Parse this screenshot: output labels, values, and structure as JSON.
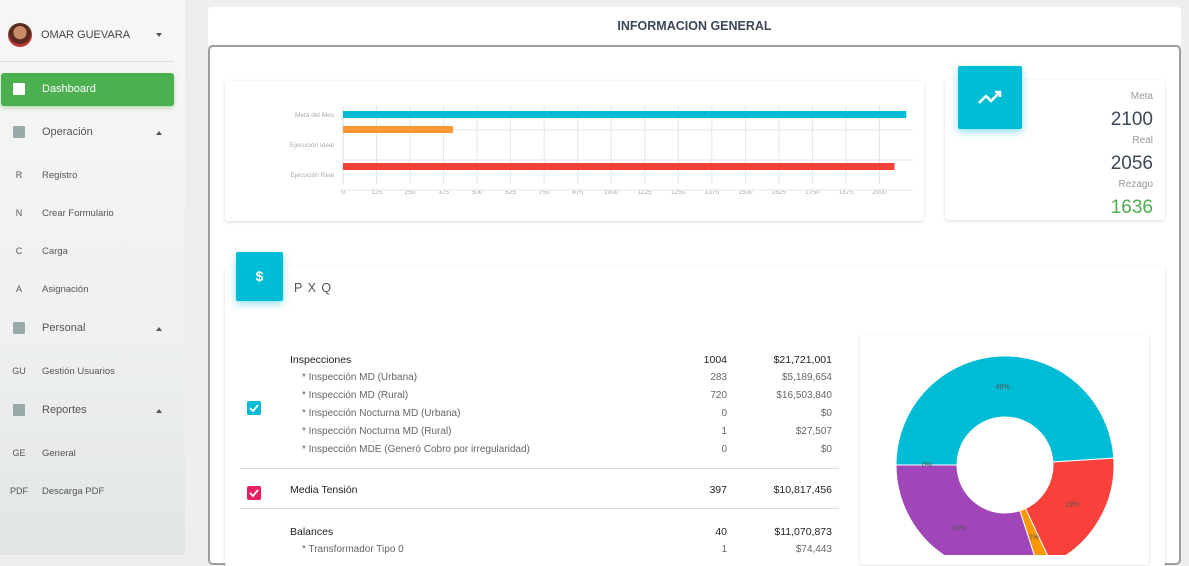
{
  "sidebar": {
    "user": "OMAR GUEVARA",
    "menu": [
      {
        "label": "Dashboard",
        "active": true
      },
      {
        "label": "Operación",
        "items": [
          {
            "abbr": "R",
            "label": "Registro"
          },
          {
            "abbr": "N",
            "label": "Crear Formulario"
          },
          {
            "abbr": "C",
            "label": "Carga"
          },
          {
            "abbr": "A",
            "label": "Asignación"
          }
        ]
      },
      {
        "label": "Personal",
        "items": [
          {
            "abbr": "GU",
            "label": "Gestión Usuarios"
          }
        ]
      },
      {
        "label": "Reportes",
        "items": [
          {
            "abbr": "GE",
            "label": "General"
          },
          {
            "abbr": "PDF",
            "label": "Descarga PDF"
          }
        ]
      }
    ]
  },
  "header": {
    "title": "INFORMACION GENERAL"
  },
  "chart_data": [
    {
      "type": "bar",
      "orientation": "horizontal",
      "categories": [
        "Meta del Mes",
        "Ejecución Ideal",
        "Ejecución Real"
      ],
      "values": [
        2100,
        410,
        2056
      ],
      "colors": [
        "#00bcd4",
        "#ff9933",
        "#f44336"
      ],
      "xlim": [
        0,
        2125
      ],
      "xticks": [
        0,
        125,
        250,
        375,
        500,
        625,
        750,
        875,
        1000,
        1125,
        1250,
        1375,
        1500,
        1625,
        1750,
        1875,
        2000
      ],
      "grid": true
    },
    {
      "type": "pie",
      "donut": true,
      "values": [
        49,
        19,
        2,
        30,
        0
      ],
      "value_labels": [
        "49%",
        "19%",
        "2%",
        "30%",
        "0%"
      ],
      "colors": [
        "#00bcd4",
        "#f7413a",
        "#ff9800",
        "#a046b8",
        "#9e9e9e"
      ]
    }
  ],
  "stats": [
    {
      "label": "Meta",
      "value": 2100
    },
    {
      "label": "Real",
      "value": 2056
    },
    {
      "label": "Rezago",
      "value": 1636,
      "color": "#4caf50"
    }
  ],
  "pxq": {
    "icon": "$",
    "title": "P X Q",
    "rows": [
      {
        "label": "Inspecciones",
        "count": 1004,
        "amount": "$21,721,001",
        "checked": true,
        "check_color": "#00bcd4",
        "subrows": [
          {
            "label": "* Inspección MD (Urbana)",
            "count": 283,
            "amount": "$5,189,654"
          },
          {
            "label": "* Inspección MD (Rural)",
            "count": 720,
            "amount": "$16,503,840"
          },
          {
            "label": "* Inspección Nocturna MD (Urbana)",
            "count": 0,
            "amount": "$0"
          },
          {
            "label": "* Inspección Nocturna MD (Rural)",
            "count": 1,
            "amount": "$27,507"
          },
          {
            "label": "* Inspección MDE (Generó Cobro por irregularidad)",
            "count": 0,
            "amount": "$0"
          }
        ]
      },
      {
        "label": "Media Tensión",
        "count": 397,
        "amount": "$10,817,456",
        "checked": true,
        "check_color": "#e91e63",
        "subrows": []
      },
      {
        "label": "Balances",
        "count": 40,
        "amount": "$11,070,873",
        "checked": false,
        "subrows": [
          {
            "label": "* Transformador Tipo 0",
            "count": 1,
            "amount": "$74,443"
          }
        ]
      }
    ]
  }
}
